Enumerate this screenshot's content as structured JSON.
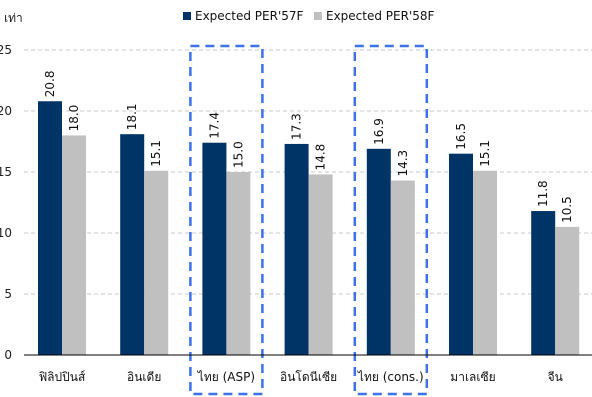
{
  "chart_data": {
    "type": "bar",
    "ylabel": "เท่า",
    "ylim": [
      0,
      25
    ],
    "yticks": [
      0,
      5,
      10,
      15,
      20,
      25
    ],
    "grid": true,
    "legend_position": "top",
    "categories": [
      "ฟิลิปปินส์",
      "อินเดีย",
      "ไทย (ASP)",
      "อินโดนีเซีย",
      "ไทย (cons.)",
      "มาเลเซีย",
      "จีน"
    ],
    "series": [
      {
        "name": "Expected PER'57F",
        "color": "#003366",
        "values": [
          20.8,
          18.1,
          17.4,
          17.3,
          16.9,
          16.5,
          11.8
        ]
      },
      {
        "name": "Expected PER'58F",
        "color": "#c0c0c0",
        "values": [
          18.0,
          15.1,
          15.0,
          14.8,
          14.3,
          15.1,
          10.5
        ]
      }
    ],
    "highlighted_categories": [
      "ไทย (ASP)",
      "ไทย (cons.)"
    ],
    "highlight_color": "#3f72e8"
  }
}
